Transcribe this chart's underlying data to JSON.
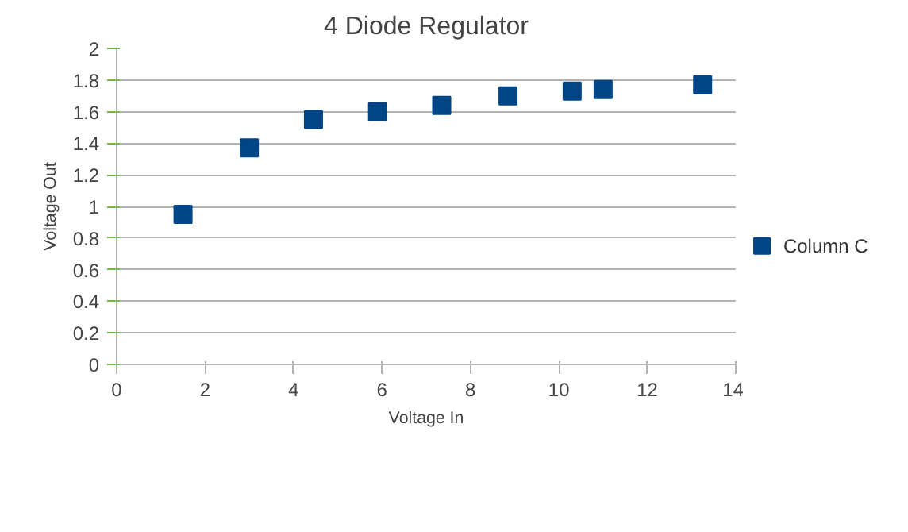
{
  "chart_data": {
    "type": "scatter",
    "title": "4 Diode Regulator",
    "xlabel": "Voltage In",
    "ylabel": "Voltage Out",
    "x": [
      1.5,
      3.0,
      4.45,
      5.9,
      7.35,
      8.85,
      10.3,
      11.0,
      13.25
    ],
    "series": [
      {
        "name": "Column C",
        "color": "#004586",
        "values": [
          0.95,
          1.37,
          1.55,
          1.6,
          1.64,
          1.7,
          1.73,
          1.74,
          1.77
        ]
      }
    ],
    "xlim": [
      0,
      14
    ],
    "xticks": [
      0,
      2,
      4,
      6,
      8,
      10,
      12,
      14
    ],
    "ylim": [
      0,
      2
    ],
    "yticks": [
      0,
      0.2,
      0.4,
      0.6,
      0.8,
      1,
      1.2,
      1.4,
      1.6,
      1.8,
      2
    ],
    "grid": "y",
    "legend": "right",
    "marker": "square"
  }
}
